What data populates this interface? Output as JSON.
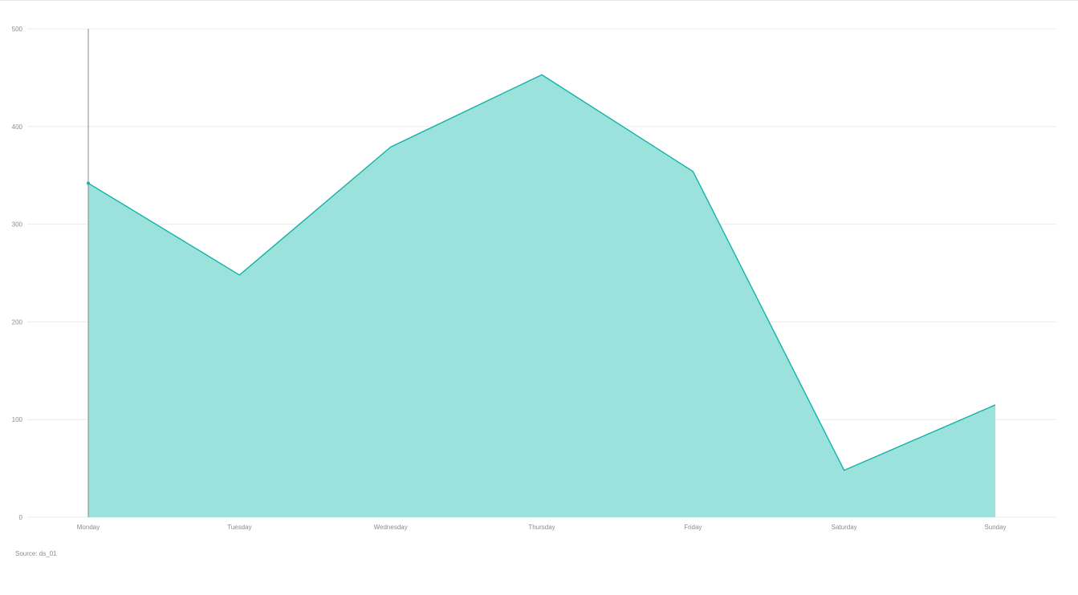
{
  "chart_data": {
    "type": "area",
    "categories": [
      "Monday",
      "Tuesday",
      "Wednesday",
      "Thursday",
      "Friday",
      "Saturday",
      "Sunday"
    ],
    "series": [
      {
        "values": [
          342,
          248,
          379,
          453,
          354,
          48,
          115
        ]
      }
    ],
    "ylim": [
      0,
      500
    ],
    "yticks": [
      0,
      100,
      200,
      300,
      400,
      500
    ],
    "grid": true,
    "legend": "none",
    "highlighted_category": "Monday"
  },
  "colors": {
    "line": "#14b3a6",
    "fill": "#9ae2db",
    "grid": "#ececec",
    "cursor": "#8a8a8a",
    "tick_text": "#8c8c8c"
  },
  "footer": {
    "source": "Source: ds_01"
  }
}
